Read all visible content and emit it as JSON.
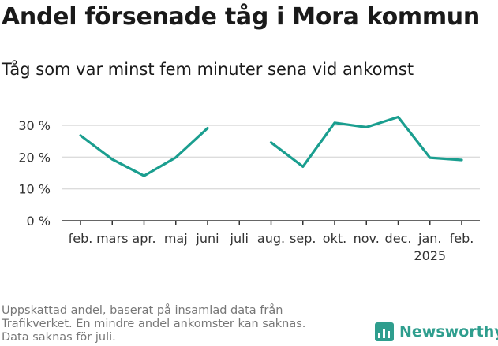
{
  "header": {
    "title": "Andel försenade tåg i Mora kommun",
    "subtitle": "Tåg som var minst fem minuter sena vid ankomst"
  },
  "footer": {
    "note_lines": [
      "Uppskattad andel, baserat på insamlad data från",
      "Trafikverket. En mindre andel ankomster kan saknas.",
      "Data saknas för juli."
    ],
    "brand": "Newsworthy",
    "brand_icon": "bar-chart-logo-icon"
  },
  "colors": {
    "line": "#1a9e8f",
    "grid": "#dcdcdc",
    "axis": "#333333",
    "brand": "#2f9e8e"
  },
  "chart_data": {
    "type": "line",
    "title": "Andel försenade tåg i Mora kommun",
    "subtitle": "Tåg som var minst fem minuter sena vid ankomst",
    "categories": [
      "feb.",
      "mars",
      "apr.",
      "maj",
      "juni",
      "juli",
      "aug.",
      "sep.",
      "okt.",
      "nov.",
      "dec.",
      "jan.",
      "feb."
    ],
    "year_labels": {
      "11": "2025"
    },
    "series": [
      {
        "values": [
          26.8,
          19.3,
          14.1,
          19.9,
          29.1,
          null,
          24.6,
          17.0,
          30.8,
          29.4,
          32.6,
          19.8,
          19.1
        ]
      }
    ],
    "y_ticks": [
      0,
      10,
      20,
      30
    ],
    "y_tick_labels": [
      "0 %",
      "10 %",
      "20 %",
      "30 %"
    ],
    "ylim": [
      0,
      30
    ],
    "grid": true,
    "legend": "none"
  }
}
